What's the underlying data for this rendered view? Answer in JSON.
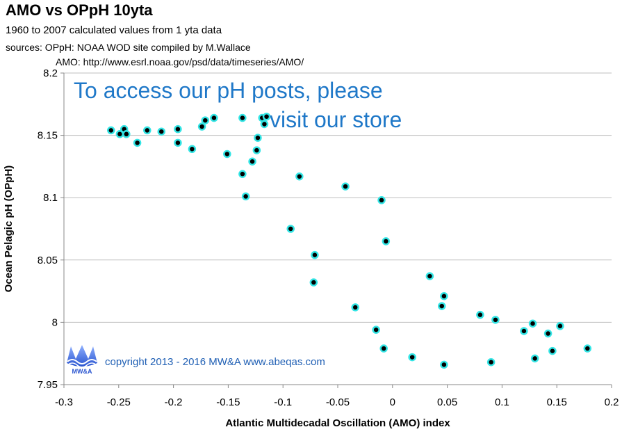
{
  "header": {
    "title": "AMO vs OPpH 10yta",
    "subtitle": "1960 to 2007 calculated values from 1 yta data",
    "sources_line": "sources:  OPpH:  NOAA WOD site compiled by M.Wallace",
    "amo_source": "AMO:  http://www.esrl.noaa.gov/psd/data/timeseries/AMO/"
  },
  "overlay": {
    "promo_line1": "To access our pH posts, please",
    "promo_line2": "visit our store",
    "copyright": "copyright 2013 -  2016   MW&A   www.abeqas.com",
    "logo_text": "MW&A"
  },
  "colors": {
    "marker_fill": "#000000",
    "marker_edge": "#33e5e5",
    "grid": "#bfbfbf",
    "promo": "#1f78c8"
  },
  "chart_data": {
    "type": "scatter",
    "title": "AMO vs OPpH 10yta",
    "xlabel": "Atlantic Multidecadal Oscillation (AMO) index",
    "ylabel": "Ocean Pelagic pH (OPpH)",
    "xlim": [
      -0.3,
      0.2
    ],
    "ylim": [
      7.95,
      8.2
    ],
    "xticks": [
      -0.3,
      -0.25,
      -0.2,
      -0.15,
      -0.1,
      -0.05,
      0,
      0.05,
      0.1,
      0.15,
      0.2
    ],
    "xtick_labels": [
      "-0.3",
      "-0.25",
      "-0.2",
      "-0.15",
      "-0.1",
      "-0.05",
      "0",
      "0.05",
      "0.1",
      "0.15",
      "0.2"
    ],
    "yticks": [
      7.95,
      8,
      8.05,
      8.1,
      8.15,
      8.2
    ],
    "ytick_labels": [
      "7.95",
      "8",
      "8.05",
      "8.1",
      "8.15",
      "8.2"
    ],
    "grid": "horizontal",
    "points": [
      {
        "x": -0.257,
        "y": 8.154
      },
      {
        "x": -0.249,
        "y": 8.151
      },
      {
        "x": -0.245,
        "y": 8.155
      },
      {
        "x": -0.243,
        "y": 8.151
      },
      {
        "x": -0.233,
        "y": 8.144
      },
      {
        "x": -0.224,
        "y": 8.154
      },
      {
        "x": -0.211,
        "y": 8.153
      },
      {
        "x": -0.196,
        "y": 8.155
      },
      {
        "x": -0.196,
        "y": 8.144
      },
      {
        "x": -0.183,
        "y": 8.139
      },
      {
        "x": -0.174,
        "y": 8.157
      },
      {
        "x": -0.171,
        "y": 8.162
      },
      {
        "x": -0.163,
        "y": 8.164
      },
      {
        "x": -0.151,
        "y": 8.135
      },
      {
        "x": -0.137,
        "y": 8.164
      },
      {
        "x": -0.137,
        "y": 8.119
      },
      {
        "x": -0.134,
        "y": 8.101
      },
      {
        "x": -0.128,
        "y": 8.129
      },
      {
        "x": -0.124,
        "y": 8.138
      },
      {
        "x": -0.123,
        "y": 8.148
      },
      {
        "x": -0.119,
        "y": 8.164
      },
      {
        "x": -0.117,
        "y": 8.159
      },
      {
        "x": -0.115,
        "y": 8.165
      },
      {
        "x": -0.093,
        "y": 8.075
      },
      {
        "x": -0.085,
        "y": 8.117
      },
      {
        "x": -0.071,
        "y": 8.054
      },
      {
        "x": -0.072,
        "y": 8.032
      },
      {
        "x": -0.043,
        "y": 8.109
      },
      {
        "x": -0.034,
        "y": 8.012
      },
      {
        "x": -0.015,
        "y": 7.994
      },
      {
        "x": -0.01,
        "y": 8.098
      },
      {
        "x": -0.008,
        "y": 7.979
      },
      {
        "x": -0.006,
        "y": 8.065
      },
      {
        "x": 0.018,
        "y": 7.972
      },
      {
        "x": 0.034,
        "y": 8.037
      },
      {
        "x": 0.045,
        "y": 8.013
      },
      {
        "x": 0.047,
        "y": 8.021
      },
      {
        "x": 0.047,
        "y": 7.966
      },
      {
        "x": 0.08,
        "y": 8.006
      },
      {
        "x": 0.09,
        "y": 7.968
      },
      {
        "x": 0.094,
        "y": 8.002
      },
      {
        "x": 0.12,
        "y": 7.993
      },
      {
        "x": 0.128,
        "y": 7.999
      },
      {
        "x": 0.13,
        "y": 7.971
      },
      {
        "x": 0.142,
        "y": 7.991
      },
      {
        "x": 0.146,
        "y": 7.977
      },
      {
        "x": 0.153,
        "y": 7.997
      },
      {
        "x": 0.178,
        "y": 7.979
      }
    ]
  }
}
